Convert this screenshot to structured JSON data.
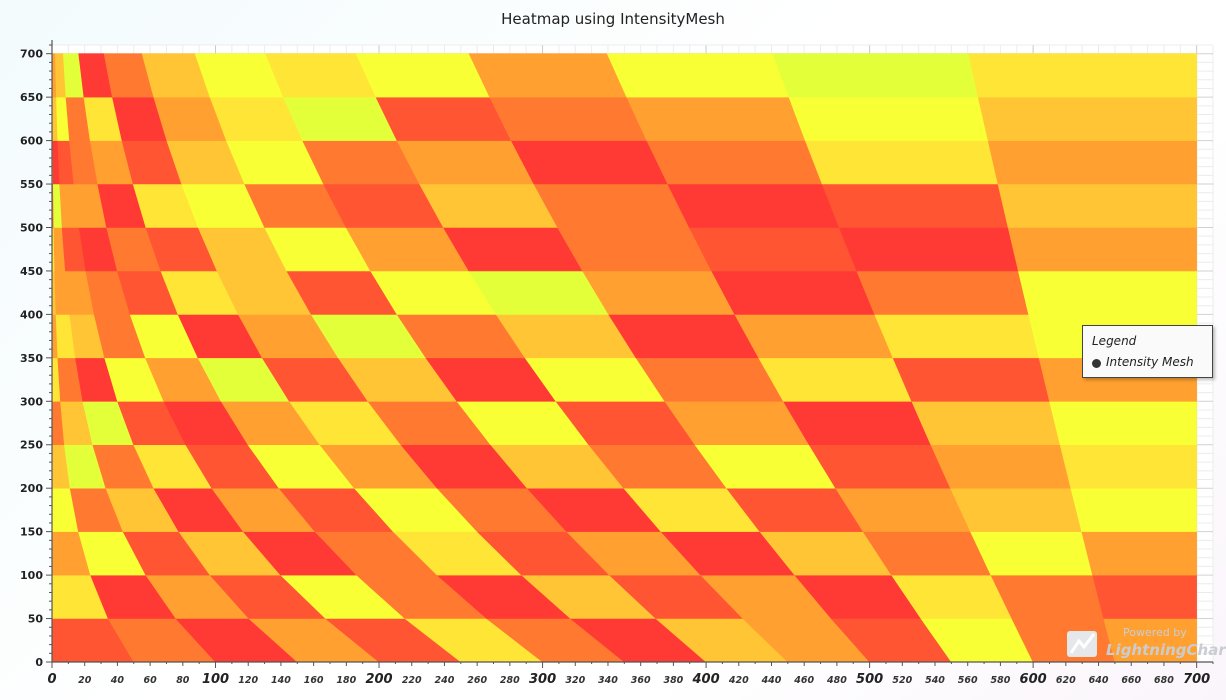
{
  "chart_data": {
    "type": "heatmap",
    "title": "Heatmap using IntensityMesh",
    "xlabel": "",
    "ylabel": "",
    "xlim": [
      0,
      710
    ],
    "ylim": [
      0,
      710
    ],
    "x_major_ticks": [
      0,
      100,
      200,
      300,
      400,
      500,
      600,
      700
    ],
    "x_minor_labels": [
      20,
      40,
      60,
      80,
      120,
      140,
      160,
      180,
      220,
      240,
      260,
      280,
      320,
      340,
      360,
      380,
      420,
      440,
      460,
      480,
      520,
      540,
      560,
      580,
      620,
      640,
      660,
      680
    ],
    "y_ticks": [
      0,
      50,
      100,
      150,
      200,
      250,
      300,
      350,
      400,
      450,
      500,
      550,
      600,
      650,
      700
    ],
    "grid": true,
    "legend": {
      "title": "Legend",
      "position": "right",
      "entries": [
        "Intensity Mesh"
      ]
    },
    "mesh": {
      "description_of_geometry": "mesh node (i,j) with i,j = 0..14 lies at x = 700*(j/14)^(1+i/7), y = 700*i/14",
      "rows": 15,
      "cols": 15,
      "x_max": 700,
      "y_max": 700
    },
    "palette": [
      "#ff3a35",
      "#ff5533",
      "#ff7a30",
      "#ffa030",
      "#ffc535",
      "#ffe535",
      "#f8ff35",
      "#e3ff3a"
    ],
    "intensity": [
      [
        1,
        2,
        0,
        3,
        1,
        5,
        2,
        0,
        4,
        3,
        1,
        6,
        2,
        3
      ],
      [
        5,
        0,
        3,
        1,
        6,
        2,
        0,
        4,
        1,
        3,
        0,
        5,
        2,
        1
      ],
      [
        3,
        6,
        1,
        4,
        0,
        2,
        5,
        1,
        3,
        0,
        4,
        2,
        6,
        3
      ],
      [
        6,
        2,
        4,
        0,
        3,
        1,
        6,
        2,
        0,
        5,
        1,
        3,
        4,
        6
      ],
      [
        4,
        7,
        2,
        5,
        1,
        6,
        3,
        0,
        4,
        2,
        6,
        1,
        3,
        5
      ],
      [
        2,
        4,
        7,
        1,
        0,
        3,
        5,
        2,
        6,
        1,
        3,
        0,
        4,
        6
      ],
      [
        5,
        2,
        0,
        6,
        3,
        7,
        1,
        4,
        0,
        6,
        2,
        5,
        1,
        3
      ],
      [
        3,
        5,
        4,
        2,
        6,
        0,
        3,
        7,
        2,
        4,
        0,
        3,
        5,
        6
      ],
      [
        4,
        3,
        3,
        2,
        1,
        5,
        4,
        1,
        6,
        7,
        3,
        0,
        2,
        6
      ],
      [
        5,
        3,
        1,
        0,
        2,
        1,
        4,
        6,
        3,
        0,
        2,
        1,
        0,
        3
      ],
      [
        2,
        7,
        3,
        3,
        0,
        5,
        6,
        2,
        1,
        4,
        2,
        0,
        1,
        4
      ],
      [
        3,
        0,
        1,
        2,
        3,
        1,
        4,
        6,
        2,
        3,
        0,
        2,
        5,
        3
      ],
      [
        0,
        4,
        6,
        2,
        5,
        0,
        3,
        5,
        7,
        1,
        2,
        3,
        6,
        4
      ],
      [
        1,
        3,
        4,
        7,
        0,
        2,
        4,
        6,
        5,
        6,
        3,
        6,
        7,
        5
      ]
    ]
  },
  "watermark": {
    "line1": "Powered by",
    "line2": "LightningChart",
    "mark": "®"
  }
}
